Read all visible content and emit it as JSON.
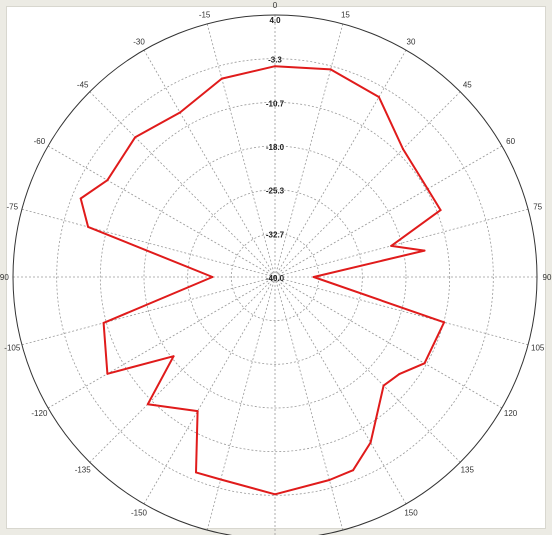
{
  "chart_data": {
    "type": "polar-line",
    "angle_labels": [
      "0",
      "15",
      "30",
      "45",
      "60",
      "75",
      "90",
      "105",
      "120",
      "135",
      "150",
      "165",
      "180",
      "-165",
      "-150",
      "-135",
      "-120",
      "-105",
      "-90",
      "-75",
      "-60",
      "-45",
      "-30",
      "-15"
    ],
    "radial_labels": [
      "4.0",
      "-3.3",
      "-10.7",
      "-18.0",
      "-25.3",
      "-32.7",
      "-40.0"
    ],
    "rlim": [
      -40,
      4
    ],
    "grid": true,
    "series": [
      {
        "color": "#e01b1b",
        "points": [
          {
            "angle": 0,
            "value": -4.6
          },
          {
            "angle": 15,
            "value": -3.9
          },
          {
            "angle": 30,
            "value": -5.1
          },
          {
            "angle": 45,
            "value": -9.6
          },
          {
            "angle": 60,
            "value": -10.4
          },
          {
            "angle": 68,
            "value": -10.0
          },
          {
            "angle": 75,
            "value": -19.8
          },
          {
            "angle": 80,
            "value": -14.5
          },
          {
            "angle": 90,
            "value": -33.5
          },
          {
            "angle": 105,
            "value": -10.6
          },
          {
            "angle": 120,
            "value": -11.0
          },
          {
            "angle": 128,
            "value": -13.5
          },
          {
            "angle": 135,
            "value": -14.2
          },
          {
            "angle": 150,
            "value": -7.9
          },
          {
            "angle": 158,
            "value": -5.0
          },
          {
            "angle": 165,
            "value": -4.7
          },
          {
            "angle": 180,
            "value": -3.5
          },
          {
            "angle": -165,
            "value": -4.8
          },
          {
            "angle": -158,
            "value": -4.6
          },
          {
            "angle": -150,
            "value": -14.0
          },
          {
            "angle": -135,
            "value": -9.8
          },
          {
            "angle": -128,
            "value": -18.4
          },
          {
            "angle": -120,
            "value": -7.5
          },
          {
            "angle": -105,
            "value": -10.2
          },
          {
            "angle": -90,
            "value": -29.5
          },
          {
            "angle": -75,
            "value": -7.5
          },
          {
            "angle": -68,
            "value": -4.8
          },
          {
            "angle": -60,
            "value": -7.5
          },
          {
            "angle": -45,
            "value": -6.8
          },
          {
            "angle": -30,
            "value": -8.1
          },
          {
            "angle": -15,
            "value": -5.5
          }
        ]
      }
    ]
  }
}
